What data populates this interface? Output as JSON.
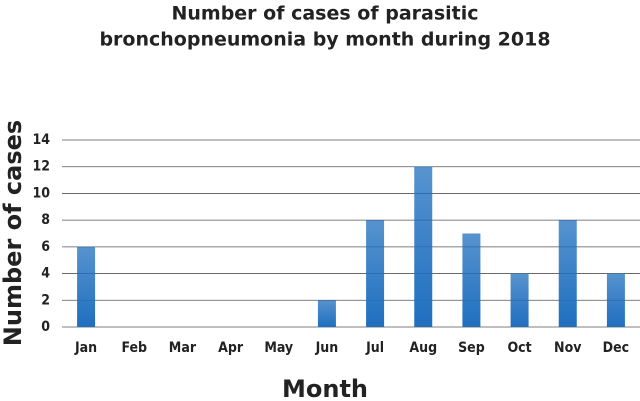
{
  "chart_data": {
    "type": "bar",
    "title": [
      "Number of cases of parasitic",
      "bronchopneumonia by month during 2018"
    ],
    "x_label": "Month",
    "y_label": "Number of cases",
    "categories": [
      "Jan",
      "Feb",
      "Mar",
      "Apr",
      "May",
      "Jun",
      "Jul",
      "Aug",
      "Sep",
      "Oct",
      "Nov",
      "Dec"
    ],
    "values": [
      6,
      0,
      0,
      0,
      0,
      2,
      8,
      12,
      7,
      4,
      8,
      4
    ],
    "color": "#1f6fbf",
    "ylim": [
      0,
      14
    ],
    "yticks": [
      0,
      2,
      4,
      6,
      8,
      10,
      12,
      14
    ],
    "grid": true
  }
}
